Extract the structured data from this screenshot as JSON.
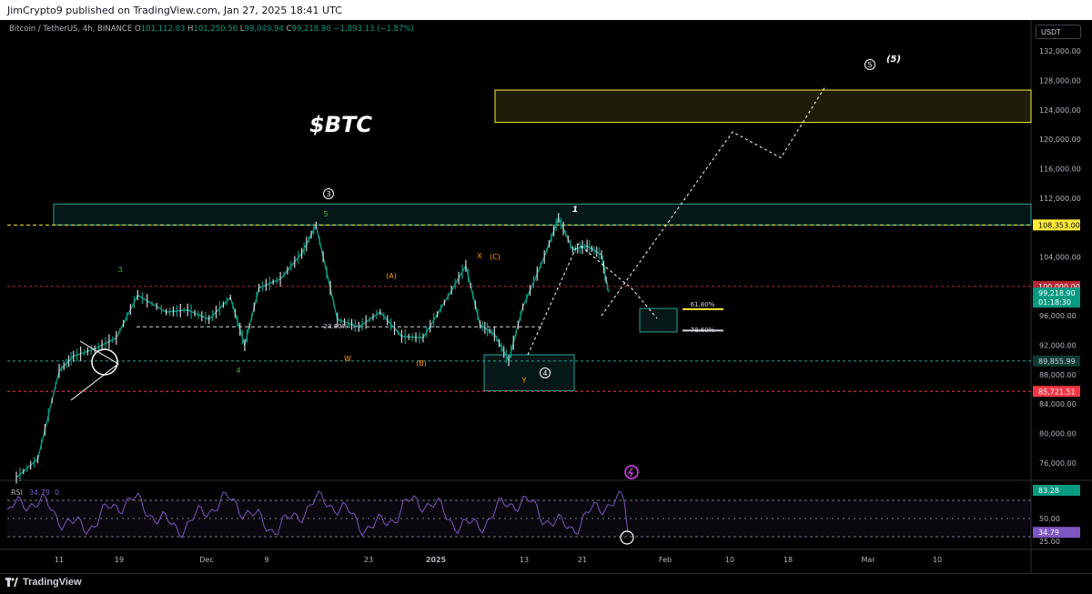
{
  "header": {
    "text": "JimCrypto9 published on TradingView.com, Jan 27, 2025 18:41 UTC"
  },
  "symbol": {
    "name": "Bitcoin / TetherUS, 4h, BINANCE",
    "open_label": "O",
    "open": "101,112.03",
    "high_label": "H",
    "high": "101,250.56",
    "low_label": "L",
    "low": "99,049.94",
    "close_label": "C",
    "close": "99,218.90",
    "change": "−1,893.13 (−1.87%)"
  },
  "currency": "USDT",
  "title": "$BTC",
  "price_axis": {
    "ticks": [
      "132,000.00",
      "128,000.00",
      "124,000.00",
      "120,000.00",
      "116,000.00",
      "112,000.00",
      "104,000.00",
      "96,000.00",
      "92,000.00",
      "88,000.00",
      "84,000.00",
      "80,000.00",
      "76,000.00"
    ],
    "tick_values": [
      132000,
      128000,
      124000,
      120000,
      116000,
      112000,
      104000,
      96000,
      92000,
      88000,
      84000,
      80000,
      76000
    ],
    "badges": [
      {
        "text": "108,353.00",
        "value": 108353,
        "bg": "#ffeb3b",
        "fg": "#000000"
      },
      {
        "text": "100,000.00",
        "value": 100000,
        "bg": "#b22833",
        "fg": "#ffffff"
      },
      {
        "text": "89,855.99",
        "value": 89856,
        "bg": "#0d3b35",
        "fg": "#d1d4dc"
      },
      {
        "text": "85,721.51",
        "value": 85721.51,
        "bg": "#f23645",
        "fg": "#ffffff"
      }
    ],
    "last_price": {
      "text": "99,218.90",
      "countdown": "01:18:30",
      "bg": "#089981"
    }
  },
  "time_axis": {
    "labels": [
      "11",
      "19",
      "Dec",
      "9",
      "23",
      "2025",
      "13",
      "21",
      "Feb",
      "10",
      "18",
      "Mar",
      "10"
    ]
  },
  "annotations": {
    "fib_618": "61.80%",
    "fib_786": "78.60%",
    "fib_236": "23.60%",
    "wave_circles": [
      "3",
      "4",
      "5"
    ],
    "wave_5_paren": "(5)",
    "wave_1": "1",
    "wave_3_small": "3",
    "wave_4_small": "4",
    "wave_5_small": "5",
    "wave_x": "X",
    "wave_w": "W",
    "wave_y": "Y",
    "wave_a": "(A)",
    "wave_b": "(B)",
    "wave_c": "(C)"
  },
  "rsi": {
    "label": "RSI",
    "value": "34.79",
    "extra": "0",
    "ticks": [
      "50.00",
      "25.00"
    ],
    "tick_values": [
      50,
      25
    ],
    "badges": [
      {
        "text": "83.28",
        "value": 83.28,
        "bg": "#089981"
      },
      {
        "text": "34.79",
        "value": 34.79,
        "bg": "#7e57c2"
      }
    ]
  },
  "footer": {
    "brand": "TradingView"
  },
  "colors": {
    "bg": "#000000",
    "up": "#089981",
    "zone_cyan": "#26a69a",
    "zone_yellow": "#ffeb3b",
    "rsi": "#7e57c2",
    "red_line": "#f23645"
  },
  "chart_data": {
    "type": "line",
    "title": "$BTC",
    "series": [
      {
        "name": "Bitcoin / TetherUS, 4h, BINANCE",
        "x": [
          "Nov 05",
          "Nov 08",
          "Nov 11",
          "Nov 13",
          "Nov 16",
          "Nov 19",
          "Nov 22",
          "Nov 26",
          "Nov 29",
          "Dec 02",
          "Dec 05",
          "Dec 07",
          "Dec 09",
          "Dec 12",
          "Dec 15",
          "Dec 17",
          "Dec 20",
          "Dec 23",
          "Dec 26",
          "Dec 29",
          "Jan 01",
          "Jan 04",
          "Jan 07",
          "Jan 09",
          "Jan 11",
          "Jan 13",
          "Jan 15",
          "Jan 18",
          "Jan 20",
          "Jan 22",
          "Jan 24",
          "Jan 26",
          "Jan 27"
        ],
        "y": [
          74000,
          76500,
          88500,
          90500,
          91500,
          93000,
          98800,
          96500,
          96800,
          95500,
          98500,
          92000,
          99800,
          101000,
          104500,
          108300,
          95500,
          94500,
          96500,
          93200,
          93000,
          97800,
          102800,
          94800,
          93500,
          89900,
          97200,
          104000,
          109300,
          105000,
          105500,
          104300,
          99200
        ]
      }
    ],
    "ylim": [
      74000,
      134000
    ],
    "price_levels": [
      108353,
      100000,
      89855.99,
      85721.51
    ],
    "zones": [
      {
        "from": 108353,
        "to": 111200,
        "color": "cyan"
      },
      {
        "from": 122300,
        "to": 126700,
        "color": "yellow"
      },
      {
        "from": 93800,
        "to": 97000,
        "color": "cyan"
      },
      {
        "from": 85800,
        "to": 90700,
        "color": "cyan"
      }
    ],
    "projection": [
      {
        "x": "Jan 26",
        "y": 96000
      },
      {
        "x": "Feb 04",
        "y": 121000
      },
      {
        "x": "Feb 12",
        "y": 117500
      },
      {
        "x": "Feb 22",
        "y": 127000
      }
    ],
    "rsi": {
      "last": 34.79,
      "max_level": 83.28,
      "levels": [
        50,
        25
      ]
    }
  }
}
